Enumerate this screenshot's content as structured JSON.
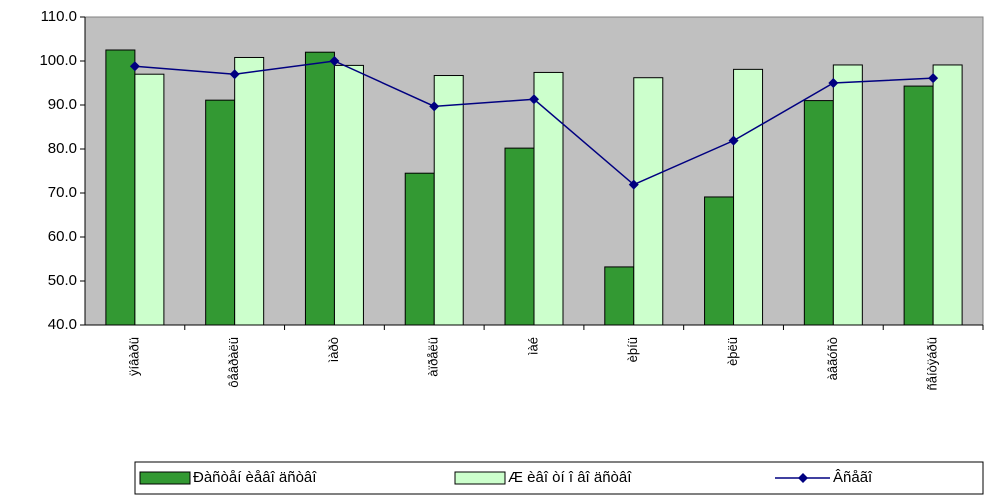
{
  "chart_data": {
    "type": "bar_line",
    "categories": [
      "ÿíâàðü",
      "ôåâðàëü",
      "ìàðò",
      "àïðåëü",
      "ìàé",
      "èþíü",
      "èþëü",
      "àâãóñò",
      "ñåíòÿáðü"
    ],
    "series": [
      {
        "name": "Ðàñòåí èåâî äñòâî",
        "type": "bar",
        "color": "#339933",
        "values": [
          102.5,
          91.1,
          102,
          74.5,
          80.2,
          53.2,
          69.1,
          91,
          94.3
        ]
      },
      {
        "name": "Æ èâî òí î âî äñòâî",
        "type": "bar",
        "color": "#ccffcc",
        "values": [
          97,
          100.8,
          99,
          96.7,
          97.4,
          96.2,
          98.1,
          99.1,
          99.1
        ]
      },
      {
        "name": "Âñåãî",
        "type": "line",
        "color": "#000080",
        "values": [
          98.8,
          97,
          100,
          89.7,
          91.3,
          71.9,
          81.9,
          95,
          96.1
        ]
      }
    ],
    "ylim": [
      40,
      110
    ],
    "yticks": [
      {
        "value": 40,
        "label": "40.0"
      },
      {
        "value": 50,
        "label": "50.0"
      },
      {
        "value": 60,
        "label": "60.0"
      },
      {
        "value": 70,
        "label": "70.0"
      },
      {
        "value": 80,
        "label": "80.0"
      },
      {
        "value": 90,
        "label": "90.0"
      },
      {
        "value": 100,
        "label": "100.0"
      },
      {
        "value": 110,
        "label": "110.0"
      }
    ],
    "plot_background": "#c0c0c0",
    "legend": "bottom"
  }
}
